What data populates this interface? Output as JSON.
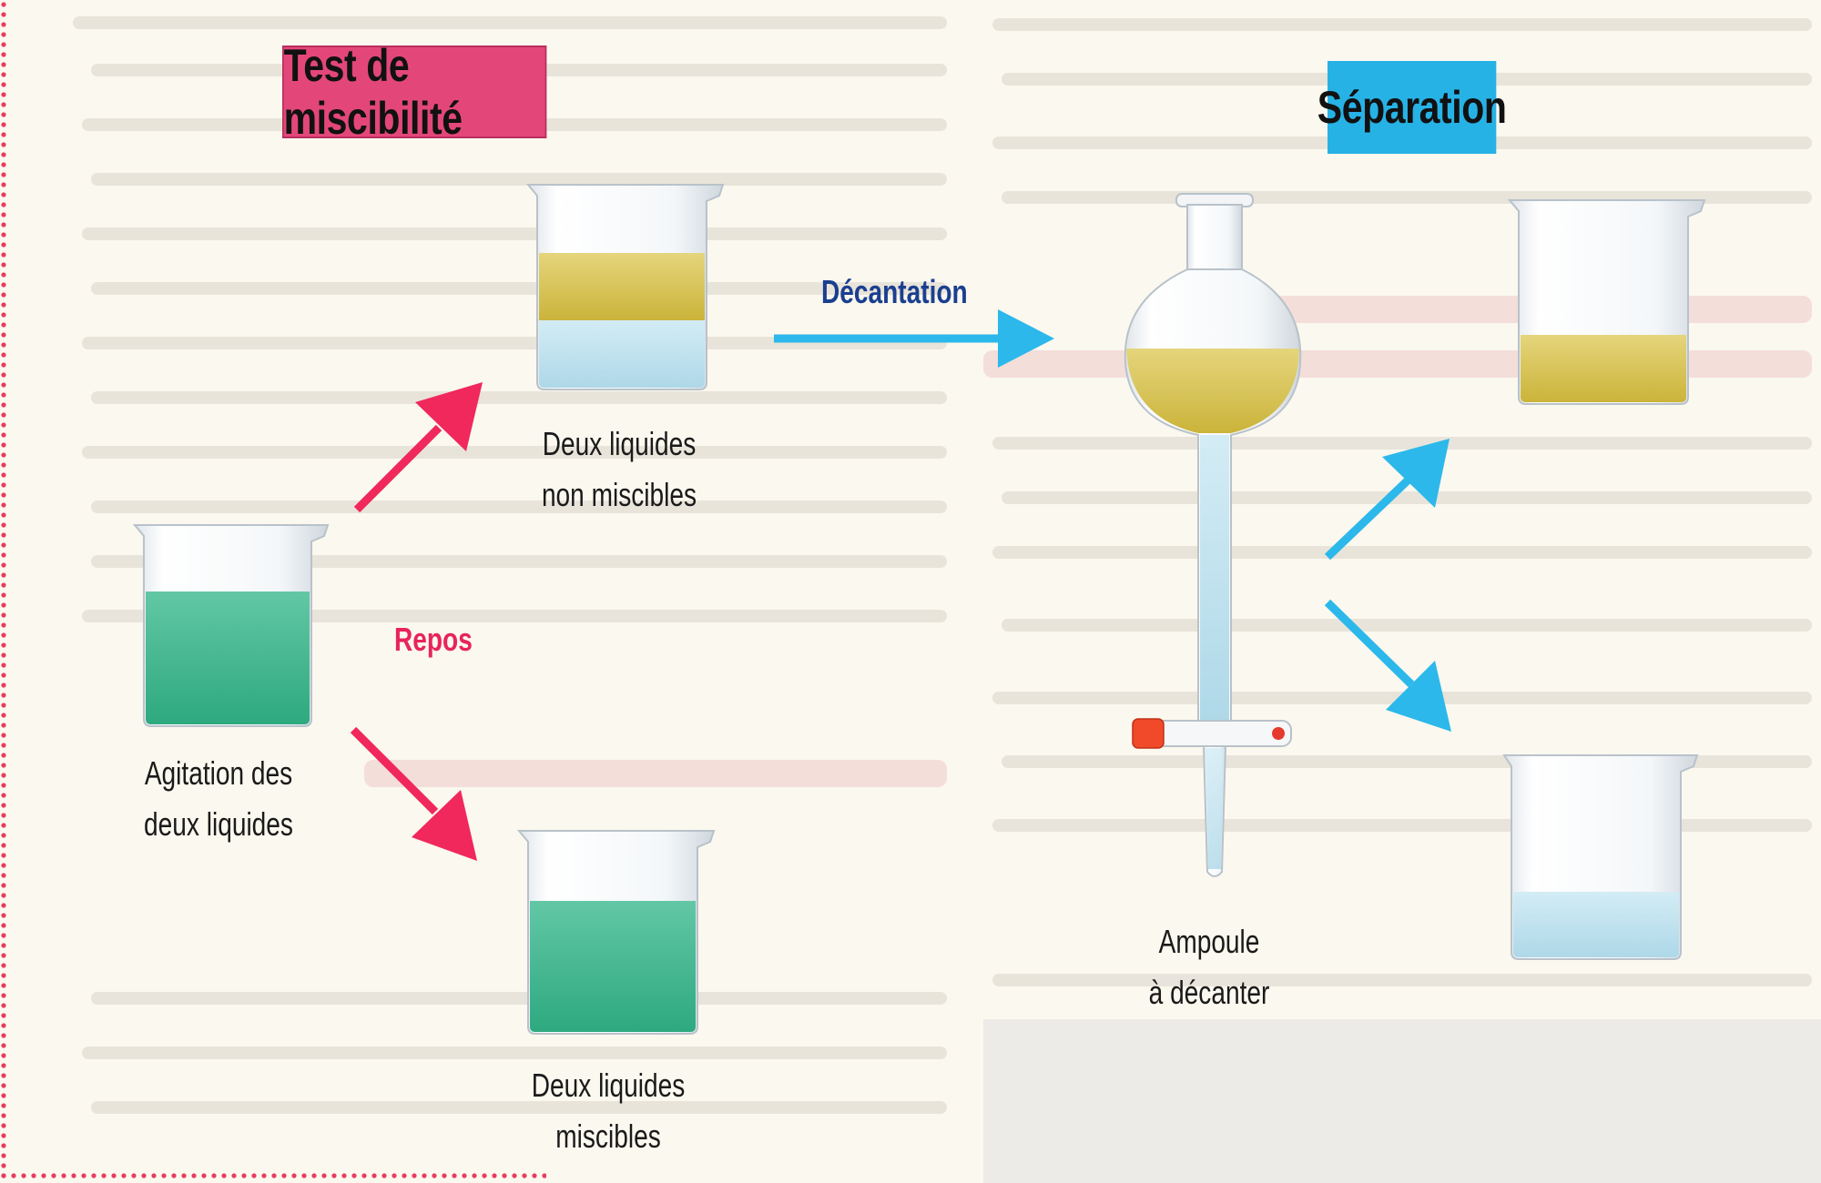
{
  "titles": {
    "miscibility_test": "Test de miscibilité",
    "separation": "Séparation"
  },
  "labels": {
    "agitation_line1": "Agitation des",
    "agitation_line2": "deux liquides",
    "immiscible_line1": "Deux liquides",
    "immiscible_line2": "non miscibles",
    "miscible_line1": "Deux liquides",
    "miscible_line2": "miscibles",
    "funnel_line1": "Ampoule",
    "funnel_line2": "à décanter"
  },
  "arrows": {
    "repos": "Repos",
    "decantation": "Décantation"
  },
  "colors": {
    "pink_accent": "#e3477a",
    "blue_accent": "#27b2e6",
    "pink_arrow": "#f0285c",
    "blue_arrow": "#2cb8ea",
    "green_liquid": "#3fb890",
    "yellow_liquid": "#d8c456",
    "light_blue_liquid": "#bfe2ef",
    "repos_label": "#e8245a",
    "decantation_label": "#1b3f8f"
  }
}
